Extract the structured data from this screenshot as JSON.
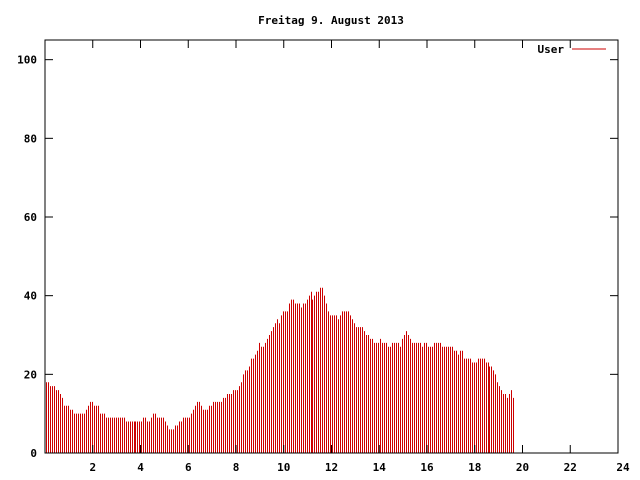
{
  "chart_data": {
    "type": "bar",
    "title": "Freitag 9. August 2013",
    "xlabel": "",
    "ylabel": "",
    "xlim": [
      0,
      24
    ],
    "ylim": [
      0,
      105
    ],
    "x_ticks": [
      2,
      4,
      6,
      8,
      10,
      12,
      14,
      16,
      18,
      20,
      22,
      24
    ],
    "y_ticks": [
      0,
      20,
      40,
      60,
      80,
      100
    ],
    "grid": false,
    "legend_position": "top-right",
    "series": [
      {
        "name": "User",
        "color": "#cc0000",
        "bar_width_hours": 0.0833,
        "values": [
          18,
          18,
          17,
          17,
          17,
          16,
          16,
          15,
          14,
          12,
          12,
          12,
          11,
          11,
          10,
          10,
          10,
          10,
          10,
          10,
          11,
          12,
          13,
          13,
          12,
          12,
          12,
          10,
          10,
          10,
          9,
          9,
          9,
          9,
          9,
          9,
          9,
          9,
          9,
          9,
          8,
          8,
          8,
          8,
          8,
          8,
          8,
          8,
          8,
          9,
          9,
          8,
          8,
          9,
          10,
          10,
          9,
          9,
          9,
          9,
          8,
          7,
          6,
          6,
          6,
          7,
          7,
          8,
          8,
          9,
          9,
          9,
          9,
          10,
          11,
          12,
          13,
          13,
          12,
          11,
          11,
          11,
          12,
          12,
          13,
          13,
          13,
          13,
          13,
          14,
          14,
          15,
          15,
          15,
          16,
          16,
          16,
          17,
          18,
          20,
          21,
          21,
          22,
          24,
          24,
          25,
          26,
          28,
          27,
          27,
          28,
          29,
          30,
          31,
          32,
          33,
          34,
          33,
          35,
          36,
          36,
          36,
          38,
          39,
          39,
          38,
          38,
          38,
          37,
          38,
          38,
          39,
          40,
          41,
          39,
          40,
          41,
          41,
          42,
          42,
          40,
          38,
          36,
          35,
          35,
          35,
          35,
          34,
          35,
          36,
          36,
          36,
          36,
          35,
          34,
          33,
          32,
          32,
          32,
          32,
          31,
          30,
          30,
          29,
          29,
          28,
          28,
          28,
          29,
          28,
          28,
          28,
          27,
          27,
          28,
          28,
          28,
          28,
          27,
          29,
          30,
          31,
          30,
          29,
          28,
          28,
          28,
          28,
          28,
          27,
          28,
          28,
          27,
          27,
          27,
          28,
          28,
          28,
          28,
          27,
          27,
          27,
          27,
          27,
          27,
          26,
          26,
          25,
          26,
          26,
          24,
          24,
          24,
          24,
          23,
          23,
          23,
          24,
          24,
          24,
          24,
          23,
          23,
          22,
          22,
          21,
          20,
          18,
          17,
          16,
          15,
          15,
          14,
          15,
          16,
          14
        ]
      }
    ]
  }
}
